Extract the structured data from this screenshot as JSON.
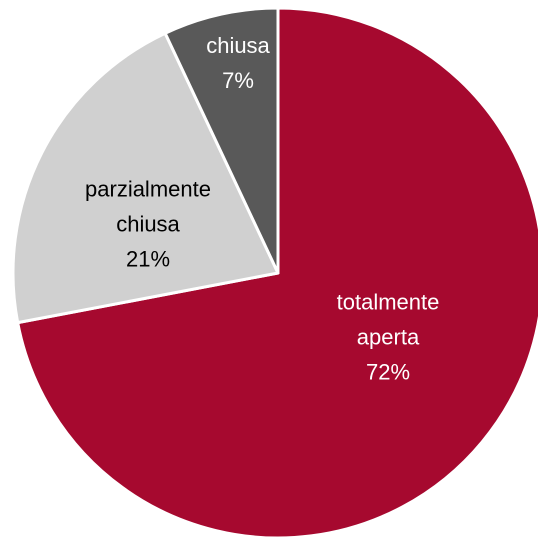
{
  "chart_data": {
    "type": "pie",
    "categories": [
      "totalmente aperta",
      "parzialmente chiusa",
      "chiusa"
    ],
    "values": [
      72,
      21,
      7
    ],
    "value_labels": [
      "72%",
      "21%",
      "7%"
    ],
    "colors": [
      "#a6092f",
      "#d0d0d0",
      "#595959"
    ]
  }
}
